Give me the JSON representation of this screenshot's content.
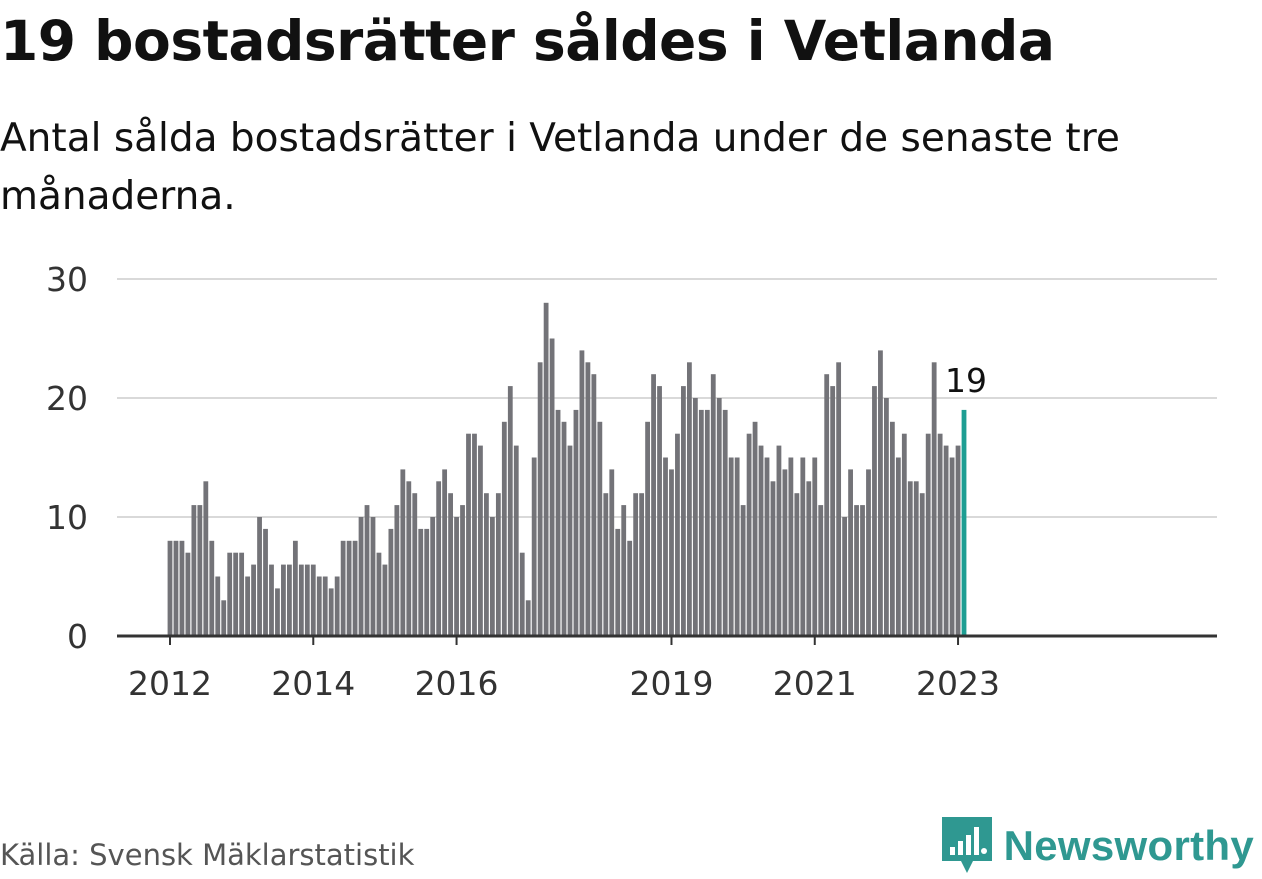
{
  "header": {
    "title": "19 bostadsrätter såldes i Vetlanda",
    "subtitle": "Antal sålda bostadsrätter i Vetlanda under de senaste tre månaderna."
  },
  "footer": {
    "source": "Källa: Svensk Mäklarstatistik",
    "brand": "Newsworthy"
  },
  "colors": {
    "bar": "#737378",
    "highlight": "#1e9e93",
    "grid": "#d9d9d9",
    "axis": "#333333",
    "brand": "#2f9891"
  },
  "chart_data": {
    "type": "bar",
    "title": "19 bostadsrätter såldes i Vetlanda",
    "subtitle": "Antal sålda bostadsrätter i Vetlanda under de senaste tre månaderna.",
    "xlabel": "",
    "ylabel": "",
    "ylim": [
      0,
      30
    ],
    "yticks": [
      0,
      10,
      20,
      30
    ],
    "grid": true,
    "start_month": "2012-01",
    "end_month": "2023-02",
    "frequency": "monthly",
    "xticks": [
      {
        "label": "2012",
        "month": "2012-01"
      },
      {
        "label": "2014",
        "month": "2014-01"
      },
      {
        "label": "2016",
        "month": "2016-01"
      },
      {
        "label": "2019",
        "month": "2019-01"
      },
      {
        "label": "2021",
        "month": "2021-01"
      },
      {
        "label": "2023",
        "month": "2023-01"
      }
    ],
    "values": [
      8,
      8,
      8,
      7,
      11,
      11,
      13,
      8,
      5,
      3,
      7,
      7,
      7,
      5,
      6,
      10,
      9,
      6,
      4,
      6,
      6,
      8,
      6,
      6,
      6,
      5,
      5,
      4,
      5,
      8,
      8,
      8,
      10,
      11,
      10,
      7,
      6,
      9,
      11,
      14,
      13,
      12,
      9,
      9,
      10,
      13,
      14,
      12,
      10,
      11,
      17,
      17,
      16,
      12,
      10,
      12,
      18,
      21,
      16,
      7,
      3,
      15,
      23,
      28,
      25,
      19,
      18,
      16,
      19,
      24,
      23,
      22,
      18,
      12,
      14,
      9,
      11,
      8,
      12,
      12,
      18,
      22,
      21,
      15,
      14,
      17,
      21,
      23,
      20,
      19,
      19,
      22,
      20,
      19,
      15,
      15,
      11,
      17,
      18,
      16,
      15,
      13,
      16,
      14,
      15,
      12,
      15,
      13,
      15,
      11,
      22,
      21,
      23,
      10,
      14,
      11,
      11,
      14,
      21,
      24,
      20,
      18,
      15,
      17,
      13,
      13,
      12,
      17,
      23,
      17,
      16,
      15,
      16,
      19
    ],
    "highlight_last": true,
    "annotations": [
      {
        "text": "19",
        "target": "last-bar"
      }
    ]
  }
}
